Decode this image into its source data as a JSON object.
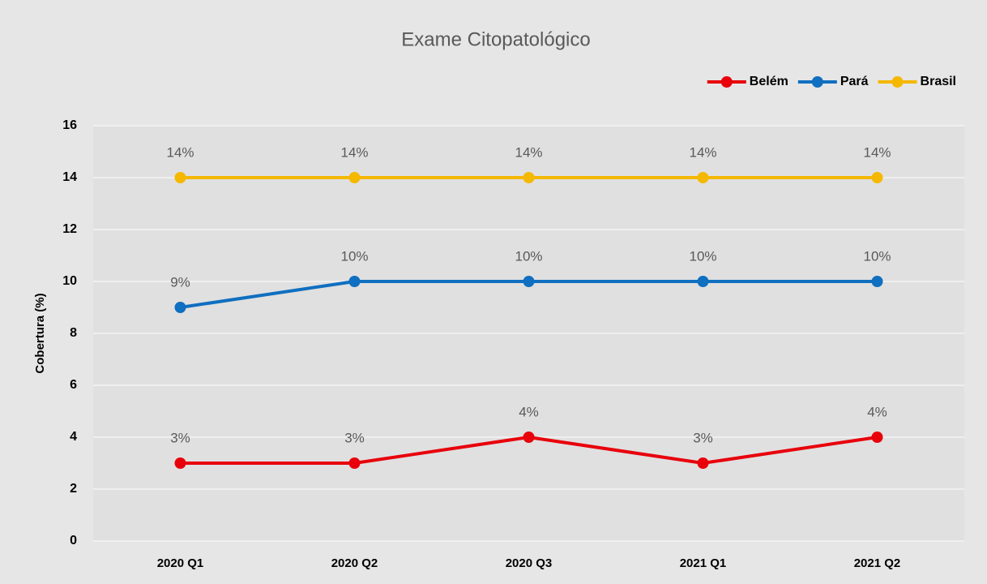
{
  "chart_data": {
    "type": "line",
    "title": "Exame Citopatológico",
    "y_label": "Cobertura (%)",
    "categories": [
      "2020 Q1",
      "2020 Q2",
      "2020 Q3",
      "2021 Q1",
      "2021 Q2"
    ],
    "series": [
      {
        "name": "Belém",
        "color": "#e8000b",
        "values": [
          3,
          3,
          4,
          3,
          4
        ],
        "value_labels": [
          "3%",
          "3%",
          "4%",
          "3%",
          "4%"
        ]
      },
      {
        "name": "Pará",
        "color": "#0f6fc0",
        "values": [
          9,
          10,
          10,
          10,
          10
        ],
        "value_labels": [
          "9%",
          "10%",
          "10%",
          "10%",
          "10%"
        ]
      },
      {
        "name": "Brasil",
        "color": "#f5b800",
        "values": [
          14,
          14,
          14,
          14,
          14
        ],
        "value_labels": [
          "14%",
          "14%",
          "14%",
          "14%",
          "14%"
        ]
      }
    ],
    "ylim": [
      0,
      16
    ],
    "yticks": [
      0,
      2,
      4,
      6,
      8,
      10,
      12,
      14,
      16
    ],
    "grid": true,
    "legend": "top-right"
  }
}
